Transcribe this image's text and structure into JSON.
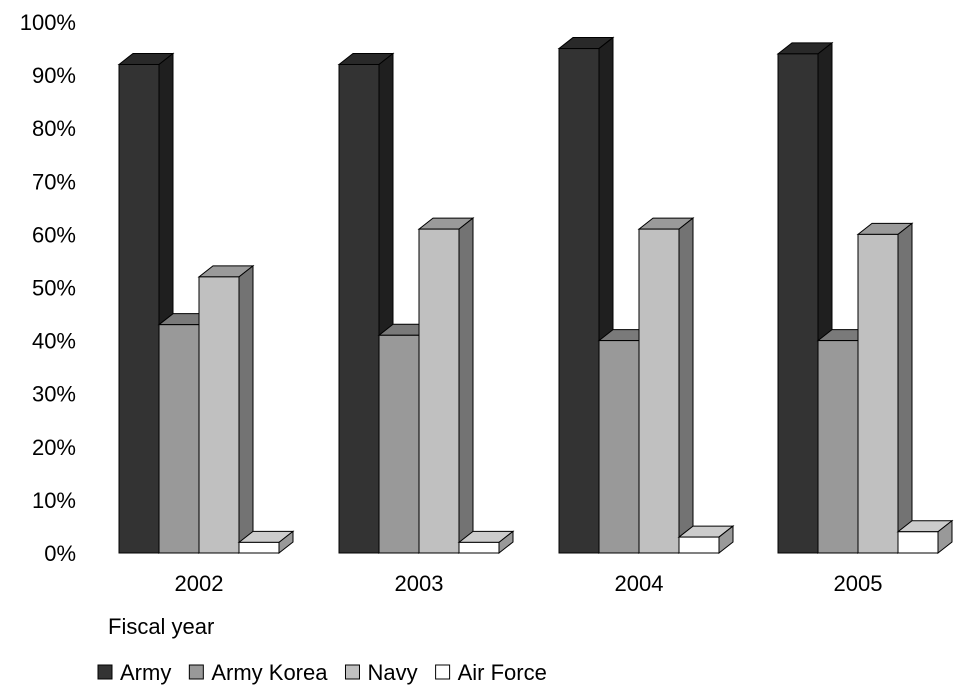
{
  "chart_data": {
    "type": "bar",
    "categories": [
      "2002",
      "2003",
      "2004",
      "2005"
    ],
    "series": [
      {
        "name": "Army",
        "values": [
          92,
          92,
          95,
          94
        ],
        "color": "#333333"
      },
      {
        "name": "Army Korea",
        "values": [
          43,
          41,
          40,
          40
        ],
        "color": "#999999"
      },
      {
        "name": "Navy",
        "values": [
          52,
          61,
          61,
          60
        ],
        "color": "#c0c0c0"
      },
      {
        "name": "Air Force",
        "values": [
          2,
          2,
          3,
          4
        ],
        "color": "#ffffff"
      }
    ],
    "yticks": [
      "0%",
      "10%",
      "20%",
      "30%",
      "40%",
      "50%",
      "60%",
      "70%",
      "80%",
      "90%",
      "100%"
    ],
    "ylim": [
      0,
      100
    ],
    "xlabel": "Fiscal year",
    "grid": false,
    "legend_position": "bottom",
    "three_d": true
  }
}
